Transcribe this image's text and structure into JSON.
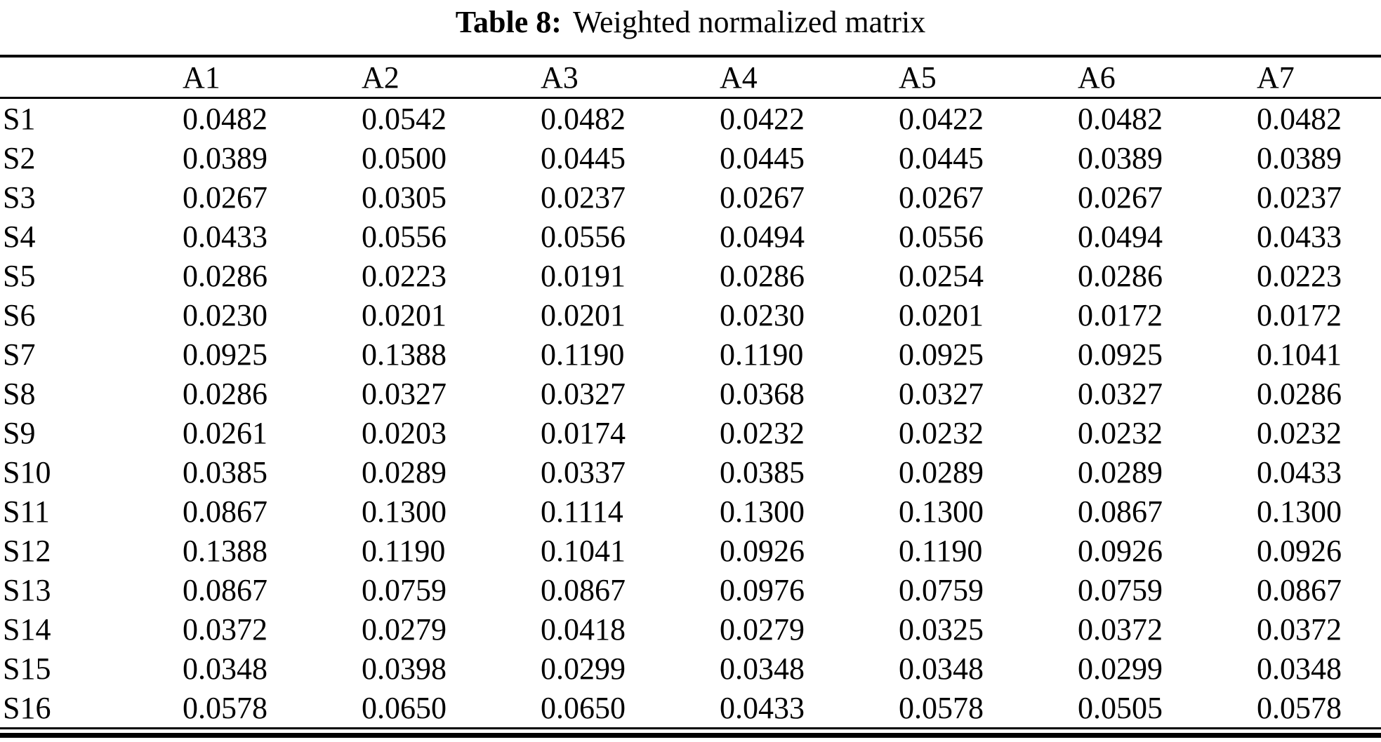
{
  "caption": {
    "label": "Table 8:",
    "text": "Weighted normalized matrix"
  },
  "table": {
    "corner_label": "",
    "columns": [
      "A1",
      "A2",
      "A3",
      "A4",
      "A5",
      "A6",
      "A7"
    ],
    "rows": [
      {
        "label": "S1",
        "values": [
          "0.0482",
          "0.0542",
          "0.0482",
          "0.0422",
          "0.0422",
          "0.0482",
          "0.0482"
        ]
      },
      {
        "label": "S2",
        "values": [
          "0.0389",
          "0.0500",
          "0.0445",
          "0.0445",
          "0.0445",
          "0.0389",
          "0.0389"
        ]
      },
      {
        "label": "S3",
        "values": [
          "0.0267",
          "0.0305",
          "0.0237",
          "0.0267",
          "0.0267",
          "0.0267",
          "0.0237"
        ]
      },
      {
        "label": "S4",
        "values": [
          "0.0433",
          "0.0556",
          "0.0556",
          "0.0494",
          "0.0556",
          "0.0494",
          "0.0433"
        ]
      },
      {
        "label": "S5",
        "values": [
          "0.0286",
          "0.0223",
          "0.0191",
          "0.0286",
          "0.0254",
          "0.0286",
          "0.0223"
        ]
      },
      {
        "label": "S6",
        "values": [
          "0.0230",
          "0.0201",
          "0.0201",
          "0.0230",
          "0.0201",
          "0.0172",
          "0.0172"
        ]
      },
      {
        "label": "S7",
        "values": [
          "0.0925",
          "0.1388",
          "0.1190",
          "0.1190",
          "0.0925",
          "0.0925",
          "0.1041"
        ]
      },
      {
        "label": "S8",
        "values": [
          "0.0286",
          "0.0327",
          "0.0327",
          "0.0368",
          "0.0327",
          "0.0327",
          "0.0286"
        ]
      },
      {
        "label": "S9",
        "values": [
          "0.0261",
          "0.0203",
          "0.0174",
          "0.0232",
          "0.0232",
          "0.0232",
          "0.0232"
        ]
      },
      {
        "label": "S10",
        "values": [
          "0.0385",
          "0.0289",
          "0.0337",
          "0.0385",
          "0.0289",
          "0.0289",
          "0.0433"
        ]
      },
      {
        "label": "S11",
        "values": [
          "0.0867",
          "0.1300",
          "0.1114",
          "0.1300",
          "0.1300",
          "0.0867",
          "0.1300"
        ]
      },
      {
        "label": "S12",
        "values": [
          "0.1388",
          "0.1190",
          "0.1041",
          "0.0926",
          "0.1190",
          "0.0926",
          "0.0926"
        ]
      },
      {
        "label": "S13",
        "values": [
          "0.0867",
          "0.0759",
          "0.0867",
          "0.0976",
          "0.0759",
          "0.0759",
          "0.0867"
        ]
      },
      {
        "label": "S14",
        "values": [
          "0.0372",
          "0.0279",
          "0.0418",
          "0.0279",
          "0.0325",
          "0.0372",
          "0.0372"
        ]
      },
      {
        "label": "S15",
        "values": [
          "0.0348",
          "0.0398",
          "0.0299",
          "0.0348",
          "0.0348",
          "0.0299",
          "0.0348"
        ]
      },
      {
        "label": "S16",
        "values": [
          "0.0578",
          "0.0650",
          "0.0650",
          "0.0433",
          "0.0578",
          "0.0505",
          "0.0578"
        ]
      }
    ]
  }
}
